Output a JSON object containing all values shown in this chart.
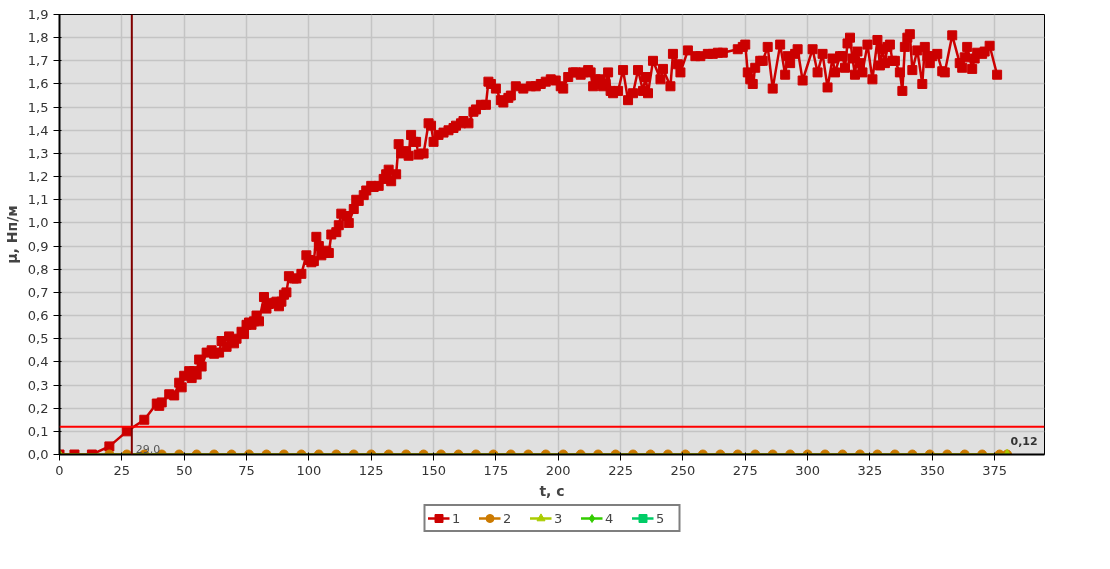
{
  "chart_data": {
    "type": "line",
    "xlabel": "t, с",
    "ylabel": "μ, Нп/м",
    "xlim": [
      0,
      395
    ],
    "ylim": [
      0,
      1.9
    ],
    "xticks": [
      0,
      25,
      50,
      75,
      100,
      125,
      150,
      175,
      200,
      225,
      250,
      275,
      300,
      325,
      350,
      375
    ],
    "yticks": [
      {
        "value": 0,
        "label": "0,0"
      },
      {
        "value": 0.1,
        "label": "0,1"
      },
      {
        "value": 0.2,
        "label": "0,2"
      },
      {
        "value": 0.3,
        "label": "0,3"
      },
      {
        "value": 0.4,
        "label": "0,4"
      },
      {
        "value": 0.5,
        "label": "0,5"
      },
      {
        "value": 0.6,
        "label": "0,6"
      },
      {
        "value": 0.7,
        "label": "0,7"
      },
      {
        "value": 0.8,
        "label": "0,8"
      },
      {
        "value": 0.9,
        "label": "0,9"
      },
      {
        "value": 1.0,
        "label": "1,0"
      },
      {
        "value": 1.1,
        "label": "1,1"
      },
      {
        "value": 1.2,
        "label": "1,2"
      },
      {
        "value": 1.3,
        "label": "1,3"
      },
      {
        "value": 1.4,
        "label": "1,4"
      },
      {
        "value": 1.5,
        "label": "1,5"
      },
      {
        "value": 1.6,
        "label": "1,6"
      },
      {
        "value": 1.7,
        "label": "1,7"
      },
      {
        "value": 1.8,
        "label": "1,8"
      },
      {
        "value": 1.9,
        "label": "1,9"
      }
    ],
    "grid": true,
    "legend": "bottom",
    "line_style": "solid",
    "ref_lines": [
      {
        "axis": "x",
        "value": 29,
        "label": "29,0",
        "color": "#800000"
      },
      {
        "axis": "y",
        "value": 0.12,
        "label": "0,12",
        "color": "#ff0000"
      }
    ],
    "series": [
      {
        "name": "1",
        "color": "#cc0000",
        "marker": "square",
        "x": [
          0,
          6,
          13,
          20,
          27,
          34,
          39,
          40,
          41,
          44,
          46,
          48,
          49,
          50,
          52,
          53,
          54,
          55,
          56,
          57,
          59,
          61,
          62,
          64,
          65,
          67,
          68,
          70,
          71,
          73,
          74,
          75,
          76,
          77,
          78,
          79,
          80,
          82,
          83,
          84,
          86,
          87,
          88,
          89,
          90,
          91,
          92,
          94,
          95,
          97,
          99,
          100,
          101,
          102,
          103,
          104,
          105,
          106,
          107,
          108,
          109,
          111,
          112,
          113,
          115,
          116,
          118,
          119,
          120,
          122,
          123,
          125,
          126,
          128,
          130,
          131,
          132,
          133,
          135,
          136,
          137,
          139,
          140,
          141,
          142,
          143,
          144,
          146,
          148,
          149,
          150,
          152,
          154,
          156,
          158,
          159,
          161,
          162,
          164,
          166,
          167,
          169,
          171,
          172,
          173,
          175,
          177,
          178,
          180,
          181,
          183,
          186,
          189,
          191,
          193,
          195,
          197,
          199,
          201,
          202,
          204,
          206,
          207,
          209,
          210,
          212,
          213,
          214,
          215,
          216,
          217,
          218,
          219,
          220,
          221,
          222,
          224,
          226,
          228,
          230,
          232,
          234,
          235,
          236,
          238,
          241,
          242,
          245,
          246,
          248,
          249,
          252,
          255,
          257,
          260,
          262,
          264,
          266,
          272,
          274,
          275,
          276,
          277,
          278,
          279,
          281,
          282,
          284,
          286,
          289,
          291,
          292,
          293,
          295,
          296,
          298,
          302,
          304,
          306,
          308,
          310,
          311,
          313,
          314,
          315,
          316,
          317,
          318,
          319,
          320,
          321,
          322,
          324,
          326,
          328,
          329,
          330,
          331,
          332,
          333,
          334,
          335,
          337,
          338,
          339,
          340,
          341,
          342,
          344,
          346,
          347,
          348,
          349,
          350,
          352,
          354,
          355,
          358,
          361,
          362,
          363,
          364,
          366,
          367,
          368,
          370,
          371,
          373,
          376
        ],
        "values": [
          0,
          0,
          0,
          0.035,
          0.1,
          0.15,
          0.22,
          0.21,
          0.225,
          0.26,
          0.255,
          0.31,
          0.29,
          0.34,
          0.36,
          0.33,
          0.36,
          0.345,
          0.41,
          0.38,
          0.44,
          0.45,
          0.435,
          0.44,
          0.49,
          0.465,
          0.51,
          0.48,
          0.5,
          0.53,
          0.52,
          0.56,
          0.57,
          0.56,
          0.575,
          0.6,
          0.575,
          0.68,
          0.63,
          0.65,
          0.655,
          0.66,
          0.64,
          0.66,
          0.69,
          0.7,
          0.77,
          0.76,
          0.76,
          0.78,
          0.86,
          0.84,
          0.83,
          0.835,
          0.94,
          0.9,
          0.86,
          0.87,
          0.88,
          0.87,
          0.95,
          0.96,
          0.99,
          1.04,
          1.03,
          1.0,
          1.06,
          1.1,
          1.095,
          1.12,
          1.14,
          1.16,
          1.155,
          1.16,
          1.19,
          1.21,
          1.23,
          1.18,
          1.21,
          1.34,
          1.3,
          1.31,
          1.29,
          1.38,
          1.35,
          1.35,
          1.295,
          1.3,
          1.43,
          1.42,
          1.35,
          1.38,
          1.39,
          1.4,
          1.41,
          1.42,
          1.43,
          1.44,
          1.43,
          1.48,
          1.49,
          1.51,
          1.51,
          1.61,
          1.6,
          1.58,
          1.53,
          1.52,
          1.54,
          1.55,
          1.59,
          1.58,
          1.59,
          1.59,
          1.6,
          1.61,
          1.62,
          1.615,
          1.59,
          1.58,
          1.63,
          1.65,
          1.65,
          1.64,
          1.65,
          1.66,
          1.65,
          1.59,
          1.62,
          1.6,
          1.62,
          1.59,
          1.6,
          1.65,
          1.57,
          1.56,
          1.57,
          1.66,
          1.53,
          1.56,
          1.66,
          1.57,
          1.63,
          1.56,
          1.7,
          1.62,
          1.665,
          1.59,
          1.73,
          1.685,
          1.65,
          1.745,
          1.72,
          1.72,
          1.73,
          1.73,
          1.735,
          1.735,
          1.75,
          1.76,
          1.77,
          1.65,
          1.62,
          1.6,
          1.67,
          1.7,
          1.7,
          1.76,
          1.58,
          1.77,
          1.64,
          1.72,
          1.69,
          1.73,
          1.75,
          1.615,
          1.75,
          1.65,
          1.73,
          1.585,
          1.71,
          1.65,
          1.72,
          1.72,
          1.67,
          1.775,
          1.8,
          1.71,
          1.64,
          1.74,
          1.69,
          1.65,
          1.77,
          1.62,
          1.79,
          1.68,
          1.75,
          1.69,
          1.76,
          1.77,
          1.7,
          1.7,
          1.65,
          1.57,
          1.76,
          1.8,
          1.815,
          1.66,
          1.745,
          1.6,
          1.76,
          1.72,
          1.69,
          1.72,
          1.73,
          1.655,
          1.65,
          1.81,
          1.69,
          1.67,
          1.715,
          1.76,
          1.665,
          1.71,
          1.735,
          1.73,
          1.74,
          1.765,
          1.64
        ]
      },
      {
        "name": "2",
        "color": "#cc7a00",
        "marker": "circle",
        "x": [
          20,
          27,
          34,
          41,
          48,
          55,
          62,
          69,
          76,
          83,
          90,
          97,
          104,
          111,
          118,
          125,
          132,
          139,
          146,
          153,
          160,
          167,
          174,
          181,
          188,
          195,
          202,
          209,
          216,
          223,
          230,
          237,
          244,
          251,
          258,
          265,
          272,
          279,
          286,
          293,
          300,
          307,
          314,
          321,
          328,
          335,
          342,
          349,
          356,
          363,
          370,
          377,
          380
        ],
        "values": [
          0,
          0,
          0,
          0,
          0,
          0,
          0,
          0,
          0,
          0,
          0,
          0,
          0,
          0,
          0,
          0,
          0,
          0,
          0,
          0,
          0,
          0,
          0,
          0,
          0,
          0,
          0,
          0,
          0,
          0,
          0,
          0,
          0,
          0,
          0,
          0,
          0,
          0,
          0,
          0,
          0,
          0,
          0,
          0,
          0,
          0,
          0,
          0,
          0,
          0,
          0,
          0,
          0
        ]
      },
      {
        "name": "3",
        "color": "#aacc00",
        "marker": "triangle",
        "x": [
          0,
          380
        ],
        "values": [
          0,
          0
        ]
      },
      {
        "name": "4",
        "color": "#33cc00",
        "marker": "diamond"
      },
      {
        "name": "5",
        "color": "#00cc66",
        "marker": "square"
      }
    ]
  }
}
